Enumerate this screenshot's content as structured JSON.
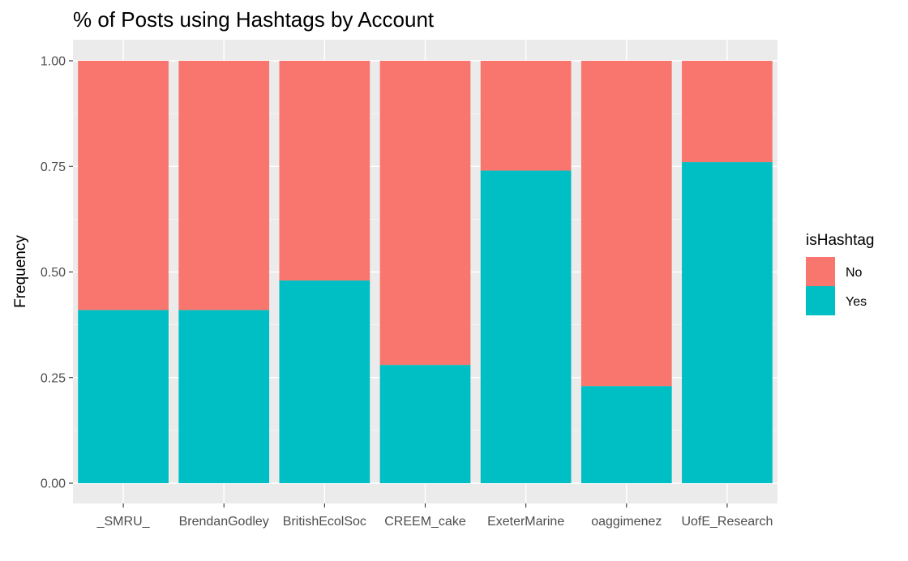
{
  "chart_data": {
    "type": "bar",
    "stacked": true,
    "title": "% of Posts using Hashtags by Account",
    "xlabel": "",
    "ylabel": "Frequency",
    "ylim": [
      0,
      1
    ],
    "yticks": [
      "0.00",
      "0.25",
      "0.50",
      "0.75",
      "1.00"
    ],
    "ytick_values": [
      0,
      0.25,
      0.5,
      0.75,
      1.0
    ],
    "grid": true,
    "legend": {
      "title": "isHashtag",
      "position": "right"
    },
    "categories": [
      "_SMRU_",
      "BrendanGodley",
      "BritishEcolSoc",
      "CREEM_cake",
      "ExeterMarine",
      "oaggimenez",
      "UofE_Research"
    ],
    "series": [
      {
        "name": "Yes",
        "color": "#00BFC4",
        "values": [
          0.41,
          0.41,
          0.48,
          0.28,
          0.74,
          0.23,
          0.76
        ]
      },
      {
        "name": "No",
        "color": "#F8766D",
        "values": [
          0.59,
          0.59,
          0.52,
          0.72,
          0.26,
          0.77,
          0.24
        ]
      }
    ]
  }
}
